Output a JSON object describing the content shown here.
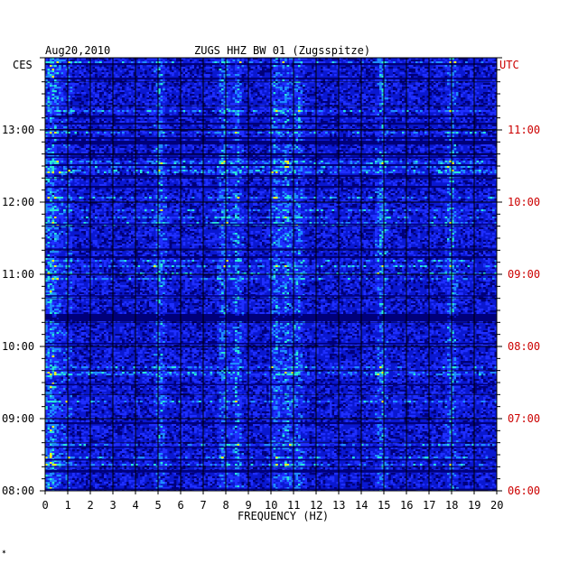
{
  "chart_data": {
    "type": "heatmap",
    "date": "Aug20,2010",
    "title": "ZUGS HHZ BW 01 (Zugsspitze)",
    "left_timezone": "CES",
    "right_timezone": "UTC",
    "xlabel": "FREQUENCY (HZ)",
    "xlim": [
      0,
      20
    ],
    "x_ticks": [
      "0",
      "1",
      "2",
      "3",
      "4",
      "5",
      "6",
      "7",
      "8",
      "9",
      "10",
      "11",
      "12",
      "13",
      "14",
      "15",
      "16",
      "17",
      "18",
      "19",
      "20"
    ],
    "left_time_ticks": [
      "13:00",
      "12:00",
      "11:00",
      "10:00",
      "09:00",
      "08:00"
    ],
    "right_time_ticks": [
      "11:00",
      "10:00",
      "09:00",
      "08:00",
      "07:00",
      "06:00"
    ],
    "time_range_ces": [
      "08:00",
      "14:00"
    ],
    "grid": true,
    "colors": {
      "background": "#0a18d0",
      "dark": "#00007a",
      "low": "#1f2fff",
      "mid": "#1e8cff",
      "high": "#27e6d8",
      "peak": "#f0f020",
      "grid": "#000000",
      "utc_text": "#cc0000"
    },
    "energy_bands_hz": [
      0.3,
      5.1,
      7.9,
      8.5,
      10.2,
      10.7,
      11.2,
      14.9,
      18.0
    ]
  },
  "footer_mark": "✶"
}
